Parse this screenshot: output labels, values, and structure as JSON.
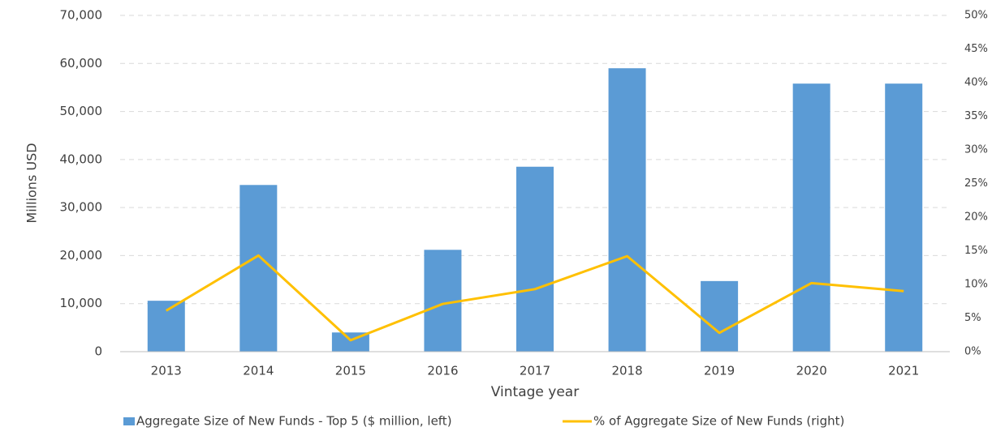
{
  "chart_data": {
    "type": "bar_line",
    "ylabel": "Millions USD",
    "xlabel": "Vintage year",
    "categories": [
      "2013",
      "2014",
      "2015",
      "2016",
      "2017",
      "2018",
      "2019",
      "2020",
      "2021"
    ],
    "series": [
      {
        "name": "Aggregate Size of New Funds - Top 5 ($ million, left)",
        "color": "#5b9bd5",
        "type": "bar",
        "axis": "y",
        "values": [
          10600,
          34700,
          4000,
          21200,
          38500,
          59000,
          14700,
          55800,
          55800
        ]
      },
      {
        "name": "% of Aggregate Size of New Funds (right)",
        "color": "#ffc000",
        "type": "line",
        "axis": "y2",
        "values": [
          6.1,
          14.3,
          1.7,
          7.1,
          9.3,
          14.2,
          2.8,
          10.2,
          9.0
        ]
      }
    ],
    "ylim": [
      0,
      70000
    ],
    "yticks": [
      0,
      {
        "value": 10000,
        "label": "10,000"
      },
      {
        "value": 20000,
        "label": "20,000"
      },
      {
        "value": 30000,
        "label": "30,000"
      },
      {
        "value": 40000,
        "label": "40,000"
      },
      {
        "value": 50000,
        "label": "50,000"
      },
      {
        "value": 60000,
        "label": "60,000"
      },
      {
        "value": 70000,
        "label": "70,000"
      }
    ],
    "y2lim": [
      0,
      50
    ],
    "y2ticks": [
      {
        "value": 0,
        "label": "0%"
      },
      {
        "value": 5,
        "label": "5%"
      },
      {
        "value": 10,
        "label": "10%"
      },
      {
        "value": 15,
        "label": "15%"
      },
      {
        "value": 20,
        "label": "20%"
      },
      {
        "value": 25,
        "label": "25%"
      },
      {
        "value": 30,
        "label": "30%"
      },
      {
        "value": 35,
        "label": "35%"
      },
      {
        "value": 40,
        "label": "40%"
      },
      {
        "value": 45,
        "label": "45%"
      },
      {
        "value": 50,
        "label": "50%"
      }
    ],
    "grid": true,
    "legend": "bottom"
  }
}
